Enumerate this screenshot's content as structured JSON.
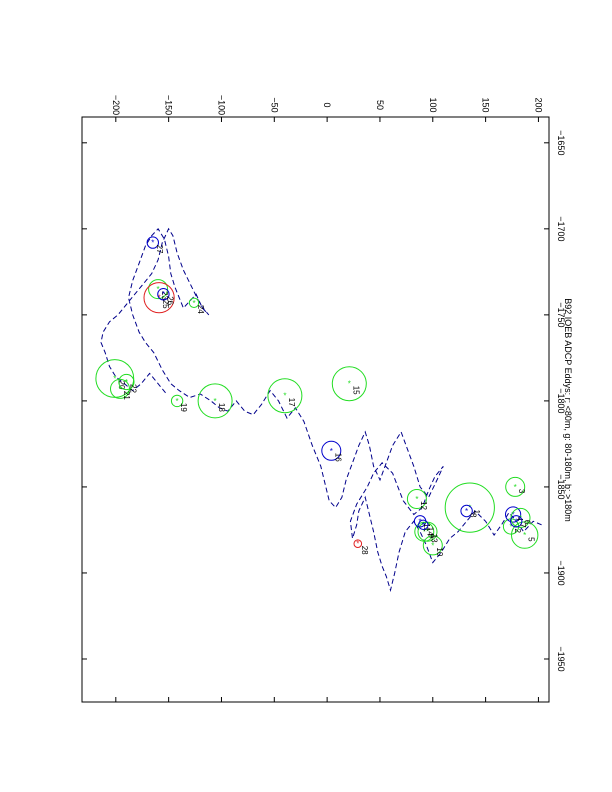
{
  "chart_data": {
    "type": "scatter",
    "title": "B92 IOEB ADCP Eddys: r: <80m, g: 80-180m, b: >180m",
    "xlabel": "",
    "ylabel": "",
    "xlim": [
      -1975,
      -1635
    ],
    "ylim": [
      -232,
      210
    ],
    "x_ticks": [
      -1950,
      -1900,
      -1850,
      -1800,
      -1750,
      -1700,
      -1650
    ],
    "y_ticks": [
      -200,
      -150,
      -100,
      -50,
      0,
      50,
      100,
      150,
      200
    ],
    "grid": false,
    "colors": {
      "track": "#00008b",
      "red": "#e02020",
      "green": "#22dd22",
      "blue": "#0000cc"
    },
    "track": [
      [
        -1872,
        203
      ],
      [
        -1870,
        195
      ],
      [
        -1876,
        186
      ],
      [
        -1869,
        178
      ],
      [
        -1865,
        172
      ],
      [
        -1872,
        165
      ],
      [
        -1878,
        158
      ],
      [
        -1870,
        150
      ],
      [
        -1864,
        140
      ],
      [
        -1870,
        132
      ],
      [
        -1876,
        124
      ],
      [
        -1880,
        116
      ],
      [
        -1888,
        108
      ],
      [
        -1894,
        100
      ],
      [
        -1884,
        94
      ],
      [
        -1876,
        88
      ],
      [
        -1870,
        82
      ],
      [
        -1876,
        74
      ],
      [
        -1888,
        68
      ],
      [
        -1900,
        64
      ],
      [
        -1910,
        60
      ],
      [
        -1902,
        56
      ],
      [
        -1896,
        52
      ],
      [
        -1888,
        48
      ],
      [
        -1876,
        44
      ],
      [
        -1866,
        40
      ],
      [
        -1856,
        36
      ],
      [
        -1864,
        30
      ],
      [
        -1872,
        28
      ],
      [
        -1880,
        24
      ],
      [
        -1870,
        22
      ],
      [
        -1860,
        28
      ],
      [
        -1850,
        38
      ],
      [
        -1842,
        44
      ],
      [
        -1836,
        52
      ],
      [
        -1842,
        62
      ],
      [
        -1858,
        72
      ],
      [
        -1866,
        82
      ],
      [
        -1862,
        90
      ],
      [
        -1852,
        96
      ],
      [
        -1844,
        102
      ],
      [
        -1838,
        110
      ],
      [
        -1846,
        104
      ],
      [
        -1856,
        96
      ],
      [
        -1850,
        88
      ],
      [
        -1838,
        82
      ],
      [
        -1828,
        76
      ],
      [
        -1818,
        70
      ],
      [
        -1826,
        62
      ],
      [
        -1836,
        56
      ],
      [
        -1846,
        50
      ],
      [
        -1838,
        44
      ],
      [
        -1826,
        40
      ],
      [
        -1818,
        36
      ],
      [
        -1826,
        30
      ],
      [
        -1836,
        24
      ],
      [
        -1846,
        18
      ],
      [
        -1856,
        14
      ],
      [
        -1862,
        8
      ],
      [
        -1858,
        2
      ],
      [
        -1848,
        -2
      ],
      [
        -1838,
        -6
      ],
      [
        -1826,
        -14
      ],
      [
        -1812,
        -22
      ],
      [
        -1804,
        -30
      ],
      [
        -1810,
        -38
      ],
      [
        -1800,
        -46
      ],
      [
        -1794,
        -54
      ],
      [
        -1802,
        -62
      ],
      [
        -1808,
        -70
      ],
      [
        -1806,
        -78
      ],
      [
        -1800,
        -86
      ],
      [
        -1806,
        -94
      ],
      [
        -1804,
        -102
      ],
      [
        -1800,
        -110
      ],
      [
        -1796,
        -120
      ],
      [
        -1798,
        -130
      ],
      [
        -1794,
        -140
      ],
      [
        -1790,
        -148
      ],
      [
        -1782,
        -156
      ],
      [
        -1772,
        -164
      ],
      [
        -1766,
        -172
      ],
      [
        -1760,
        -178
      ],
      [
        -1750,
        -184
      ],
      [
        -1740,
        -188
      ],
      [
        -1730,
        -184
      ],
      [
        -1720,
        -178
      ],
      [
        -1710,
        -172
      ],
      [
        -1704,
        -166
      ],
      [
        -1700,
        -160
      ],
      [
        -1706,
        -154
      ],
      [
        -1716,
        -150
      ],
      [
        -1726,
        -148
      ],
      [
        -1734,
        -144
      ],
      [
        -1740,
        -140
      ],
      [
        -1746,
        -136
      ],
      [
        -1742,
        -130
      ],
      [
        -1738,
        -124
      ],
      [
        -1746,
        -118
      ],
      [
        -1750,
        -112
      ],
      [
        -1744,
        -120
      ],
      [
        -1734,
        -128
      ],
      [
        -1724,
        -136
      ],
      [
        -1714,
        -142
      ],
      [
        -1704,
        -146
      ],
      [
        -1700,
        -150
      ],
      [
        -1708,
        -156
      ],
      [
        -1718,
        -160
      ],
      [
        -1726,
        -166
      ],
      [
        -1732,
        -174
      ],
      [
        -1738,
        -182
      ],
      [
        -1744,
        -190
      ],
      [
        -1750,
        -198
      ],
      [
        -1754,
        -206
      ],
      [
        -1760,
        -212
      ],
      [
        -1766,
        -214
      ],
      [
        -1772,
        -210
      ],
      [
        -1780,
        -206
      ],
      [
        -1786,
        -200
      ],
      [
        -1790,
        -192
      ],
      [
        -1794,
        -184
      ],
      [
        -1790,
        -176
      ],
      [
        -1784,
        -168
      ],
      [
        -1790,
        -160
      ],
      [
        -1796,
        -152
      ]
    ],
    "eddies": [
      {
        "label": "1",
        "x": -1862,
        "y": 135,
        "color": "green",
        "r": 26
      },
      {
        "label": "2",
        "x": -1873,
        "y": 174,
        "color": "green",
        "r": 8
      },
      {
        "label": "3",
        "x": -1850,
        "y": 178,
        "color": "green",
        "r": 10
      },
      {
        "label": "4",
        "x": -1866,
        "y": 176,
        "color": "blue",
        "r": 8
      },
      {
        "label": "5",
        "x": -1878,
        "y": 187,
        "color": "green",
        "r": 14
      },
      {
        "label": "6",
        "x": -1868,
        "y": 183,
        "color": "green",
        "r": 10
      },
      {
        "label": "7",
        "x": -1870,
        "y": 179,
        "color": "blue",
        "r": 6
      },
      {
        "label": "8",
        "x": -1864,
        "y": 132,
        "color": "blue",
        "r": 6
      },
      {
        "label": "9",
        "x": -1876,
        "y": 92,
        "color": "green",
        "r": 10
      },
      {
        "label": "10",
        "x": -1884,
        "y": 100,
        "color": "green",
        "r": 10
      },
      {
        "label": "11",
        "x": -1870,
        "y": 88,
        "color": "blue",
        "r": 6
      },
      {
        "label": "12",
        "x": -1857,
        "y": 85,
        "color": "green",
        "r": 10
      },
      {
        "label": "13",
        "x": -1876,
        "y": 95,
        "color": "green",
        "r": 10
      },
      {
        "label": "14",
        "x": -1872,
        "y": 91,
        "color": "blue",
        "r": 5
      },
      {
        "label": "15",
        "x": -1790,
        "y": 21,
        "color": "green",
        "r": 18
      },
      {
        "label": "16",
        "x": -1829,
        "y": 4,
        "color": "blue",
        "r": 10
      },
      {
        "label": "17",
        "x": -1797,
        "y": -40,
        "color": "green",
        "r": 18
      },
      {
        "label": "18",
        "x": -1800,
        "y": -106,
        "color": "green",
        "r": 18
      },
      {
        "label": "19",
        "x": -1800,
        "y": -142,
        "color": "green",
        "r": 6
      },
      {
        "label": "20",
        "x": -1787,
        "y": -201,
        "color": "green",
        "r": 20
      },
      {
        "label": "21",
        "x": -1793,
        "y": -196,
        "color": "green",
        "r": 10
      },
      {
        "label": "22",
        "x": -1789,
        "y": -190,
        "color": "green",
        "r": 8
      },
      {
        "label": "23",
        "x": -1735,
        "y": -160,
        "color": "green",
        "r": 10
      },
      {
        "label": "24",
        "x": -1743,
        "y": -126,
        "color": "green",
        "r": 5
      },
      {
        "label": "25",
        "x": -1740,
        "y": -159,
        "color": "red",
        "r": 16
      },
      {
        "label": "26",
        "x": -1738,
        "y": -155,
        "color": "blue",
        "r": 6
      },
      {
        "label": "27",
        "x": -1708,
        "y": -165,
        "color": "blue",
        "r": 6
      },
      {
        "label": "28",
        "x": -1883,
        "y": 29,
        "color": "red",
        "r": 4
      }
    ]
  }
}
